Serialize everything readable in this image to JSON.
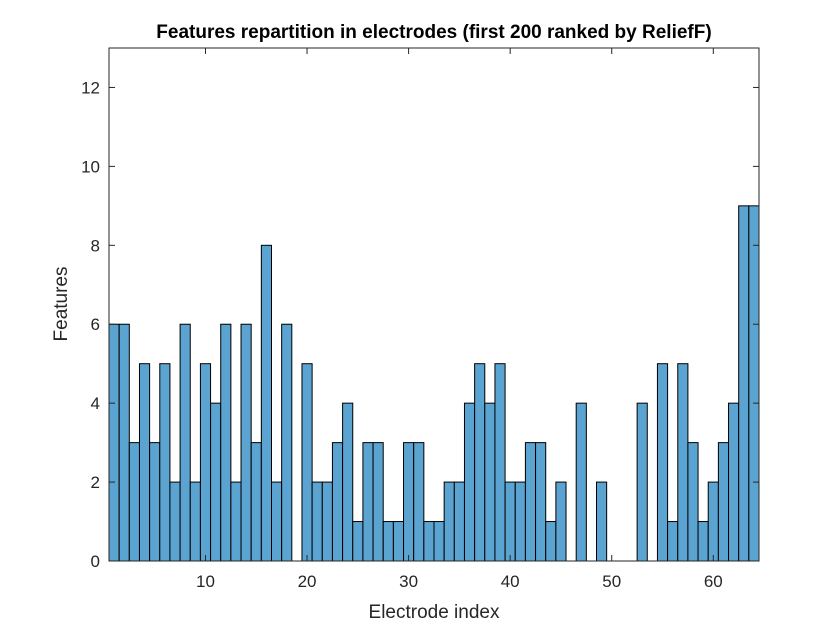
{
  "chart_data": {
    "type": "bar",
    "title": "Features repartition in electrodes (first 200 ranked by ReliefF)",
    "xlabel": "Electrode index",
    "ylabel": "Features",
    "categories": [
      1,
      2,
      3,
      4,
      5,
      6,
      7,
      8,
      9,
      10,
      11,
      12,
      13,
      14,
      15,
      16,
      17,
      18,
      19,
      20,
      21,
      22,
      23,
      24,
      25,
      26,
      27,
      28,
      29,
      30,
      31,
      32,
      33,
      34,
      35,
      36,
      37,
      38,
      39,
      40,
      41,
      42,
      43,
      44,
      45,
      46,
      47,
      48,
      49,
      50,
      51,
      52,
      53,
      54,
      55,
      56,
      57,
      58,
      59,
      60,
      61,
      62,
      63,
      64
    ],
    "values": [
      6,
      6,
      3,
      5,
      3,
      5,
      2,
      6,
      2,
      5,
      4,
      6,
      2,
      6,
      3,
      8,
      2,
      6,
      0,
      5,
      2,
      2,
      3,
      4,
      1,
      3,
      3,
      1,
      1,
      3,
      3,
      1,
      1,
      2,
      2,
      4,
      5,
      4,
      5,
      2,
      2,
      3,
      3,
      1,
      2,
      0,
      4,
      0,
      2,
      0,
      0,
      0,
      4,
      0,
      5,
      1,
      5,
      3,
      1,
      2,
      3,
      4,
      9,
      9
    ],
    "xlim": [
      0.5,
      64.5
    ],
    "ylim": [
      0,
      13
    ],
    "xticks": [
      10,
      20,
      30,
      40,
      50,
      60
    ],
    "yticks": [
      0,
      2,
      4,
      6,
      8,
      10,
      12
    ],
    "grid": false,
    "colors": {
      "bar_fill": "#5ba3d1",
      "bar_edge": "#000000",
      "axes": "#262626"
    }
  }
}
